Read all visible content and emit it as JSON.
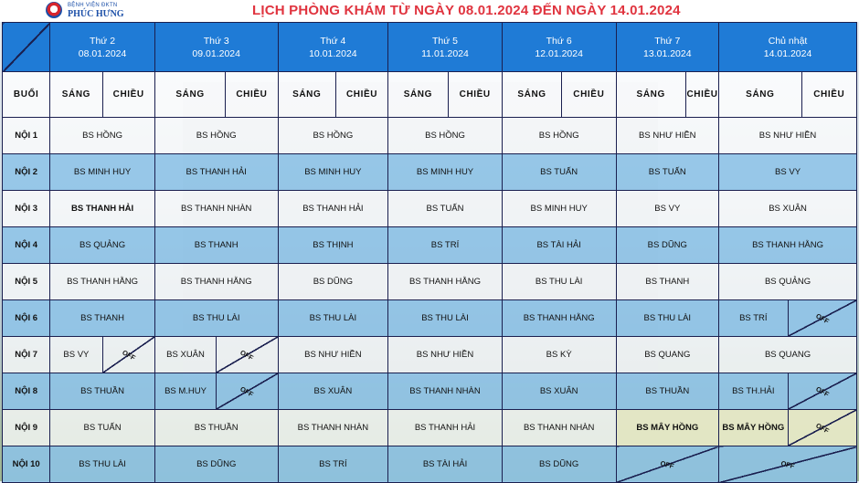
{
  "header": {
    "logo_line1": "BỆNH VIỆN ĐKTN",
    "logo_line2": "PHÚC HƯNG",
    "title": "LỊCH PHÒNG KHÁM TỪ NGÀY 08.01.2024 ĐẾN NGÀY 14.01.2024"
  },
  "colors": {
    "title": "#e0343f",
    "header_blue": "#1f7bd6",
    "grid": "#1a1f4f",
    "cell_blue": "#8cc3e8"
  },
  "table": {
    "corner_label": "",
    "session_label": "BUỔI",
    "morning": "SÁNG",
    "afternoon": "CHIỀU",
    "off_label": "OFF",
    "days": [
      {
        "name": "Thứ 2",
        "date": "08.01.2024"
      },
      {
        "name": "Thứ 3",
        "date": "09.01.2024"
      },
      {
        "name": "Thứ 4",
        "date": "10.01.2024"
      },
      {
        "name": "Thứ 5",
        "date": "11.01.2024"
      },
      {
        "name": "Thứ 6",
        "date": "12.01.2024"
      },
      {
        "name": "Thứ 7",
        "date": "13.01.2024"
      },
      {
        "name": "Chủ nhật",
        "date": "14.01.2024"
      }
    ],
    "rows": [
      {
        "label": "NỘI 1",
        "cells": [
          "BS HỒNG",
          "BS HỒNG",
          "BS HỒNG",
          "BS HỒNG",
          "BS HỒNG",
          "BS NHƯ HIỀN",
          "BS NHƯ HIỀN"
        ]
      },
      {
        "label": "NỘI 2",
        "cells": [
          "BS MINH HUY",
          "BS THANH HẢI",
          "BS MINH HUY",
          "BS MINH HUY",
          "BS TUẤN",
          "BS TUẤN",
          "BS VY"
        ]
      },
      {
        "label": "NỘI 3",
        "cells": [
          "BS THANH HẢI",
          "BS THANH NHÀN",
          "BS THANH HẢI",
          "BS TUẤN",
          "BS MINH HUY",
          "BS VY",
          "BS XUÂN"
        ]
      },
      {
        "label": "NỘI 4",
        "cells": [
          "BS QUẢNG",
          "BS THANH",
          "BS THỊNH",
          "BS TRÍ",
          "BS TÀI HẢI",
          "BS DŨNG",
          "BS THANH HẰNG"
        ]
      },
      {
        "label": "NỘI 5",
        "cells": [
          "BS THANH HẰNG",
          "BS THANH HẰNG",
          "BS DŨNG",
          "BS THANH HẰNG",
          "BS THU LÀI",
          "BS THANH",
          "BS QUẢNG"
        ]
      },
      {
        "label": "NỘI 6",
        "cells": [
          "BS THANH",
          "BS THU LÀI",
          "BS THU LÀI",
          "BS THU LÀI",
          "BS THANH HẰNG",
          "BS THU LÀI",
          "BS TRÍ"
        ]
      },
      {
        "label": "NỘI 7",
        "cells": [
          "BS VY",
          "BS XUÂN",
          "BS NHƯ HIỀN",
          "BS NHƯ HIỀN",
          "BS KỲ",
          "BS QUANG",
          "BS QUANG"
        ]
      },
      {
        "label": "NỘI 8",
        "cells": [
          "BS THUẦN",
          "BS M.HUY",
          "BS XUÂN",
          "BS THANH NHÀN",
          "BS XUÂN",
          "BS THUẦN",
          "BS TH.HẢI"
        ]
      },
      {
        "label": "NỘI 9",
        "cells": [
          "BS TUẤN",
          "BS THUẦN",
          "BS THANH NHÀN",
          "BS THANH HẢI",
          "BS THANH NHÀN",
          "BS MÂY HỒNG",
          "BS MÂY HỒNG"
        ]
      },
      {
        "label": "NỘI 10",
        "cells": [
          "BS THU LÀI",
          "BS DŨNG",
          "BS TRÍ",
          "BS TÀI HẢI",
          "BS DŨNG",
          "",
          ""
        ]
      }
    ]
  }
}
